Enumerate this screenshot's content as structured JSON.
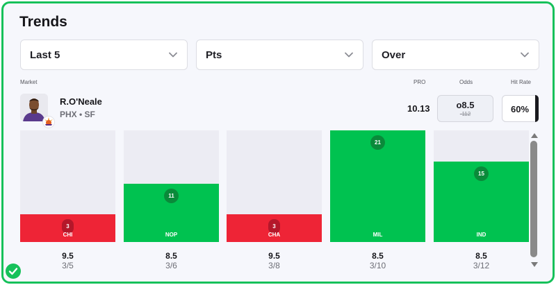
{
  "header": {
    "title": "Trends"
  },
  "filters": [
    {
      "value": "Last 5"
    },
    {
      "value": "Pts"
    },
    {
      "value": "Over"
    }
  ],
  "table_headers": {
    "market": "Market",
    "pro": "PRO",
    "odds": "Odds",
    "hit_rate": "Hit Rate"
  },
  "player": {
    "name": "R.O'Neale",
    "team_pos": "PHX • SF"
  },
  "stats": {
    "pro": "10.13",
    "odds_line": "o8.5",
    "odds_price": "-112",
    "hit_rate": "60%"
  },
  "games": [
    {
      "value": "3",
      "opponent": "CHI",
      "line": "9.5",
      "date": "3/5",
      "result": "miss",
      "level": 0.25
    },
    {
      "value": "11",
      "opponent": "NOP",
      "line": "8.5",
      "date": "3/6",
      "result": "hit",
      "level": 0.52
    },
    {
      "value": "3",
      "opponent": "CHA",
      "line": "9.5",
      "date": "3/8",
      "result": "miss",
      "level": 0.25
    },
    {
      "value": "21",
      "opponent": "MIL",
      "line": "8.5",
      "date": "3/10",
      "result": "hit",
      "level": 1.0
    },
    {
      "value": "15",
      "opponent": "IND",
      "line": "8.5",
      "date": "3/12",
      "result": "hit",
      "level": 0.72
    }
  ],
  "colors": {
    "hit": "#00c250",
    "miss": "#ee2436",
    "accent": "#16c15a"
  },
  "icons": [
    "chevron-down-icon",
    "player-headshot",
    "suns-logo",
    "check-icon",
    "scroll-up-arrow",
    "scroll-down-arrow"
  ]
}
